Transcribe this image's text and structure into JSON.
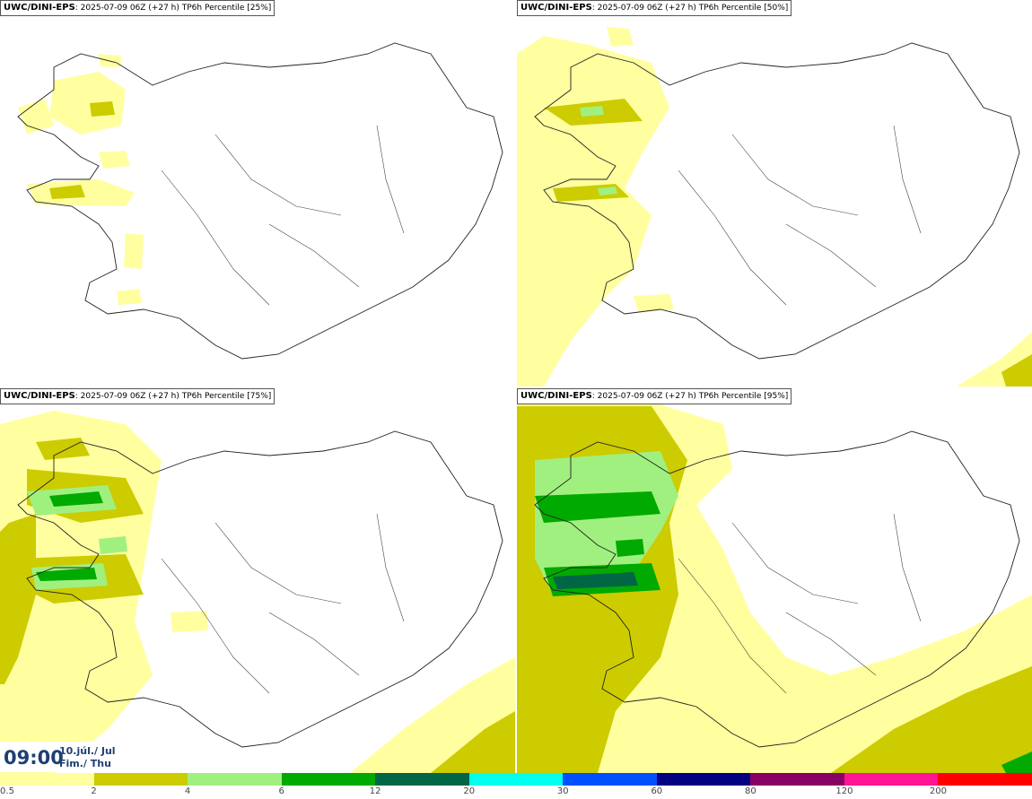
{
  "panels": [
    {
      "model": "UWC/DINI-EPS",
      "run": ": 2025-07-09 06Z (+27 h)",
      "field": " TP6h Percentile [25%]"
    },
    {
      "model": "UWC/DINI-EPS",
      "run": ": 2025-07-09 06Z (+27 h)",
      "field": " TP6h Percentile [50%]"
    },
    {
      "model": "UWC/DINI-EPS",
      "run": ": 2025-07-09 06Z (+27 h)",
      "field": " TP6h Percentile [75%]"
    },
    {
      "model": "UWC/DINI-EPS",
      "run": ": 2025-07-09 06Z (+27 h)",
      "field": " TP6h Percentile [95%]"
    }
  ],
  "valid_time": {
    "time": "09:00",
    "date_line1": "10.júl./ Jul",
    "date_line2": "Fim./ Thu"
  },
  "legend": {
    "labels": [
      "0.5",
      "2",
      "4",
      "6",
      "12",
      "20",
      "30",
      "60",
      "80",
      "120",
      "200"
    ],
    "colors": [
      "#ffffa0",
      "#cccc00",
      "#a0f080",
      "#00aa00",
      "#006644",
      "#00ffee",
      "#0050ff",
      "#000080",
      "#880066",
      "#ff1493",
      "#ff0000"
    ]
  }
}
